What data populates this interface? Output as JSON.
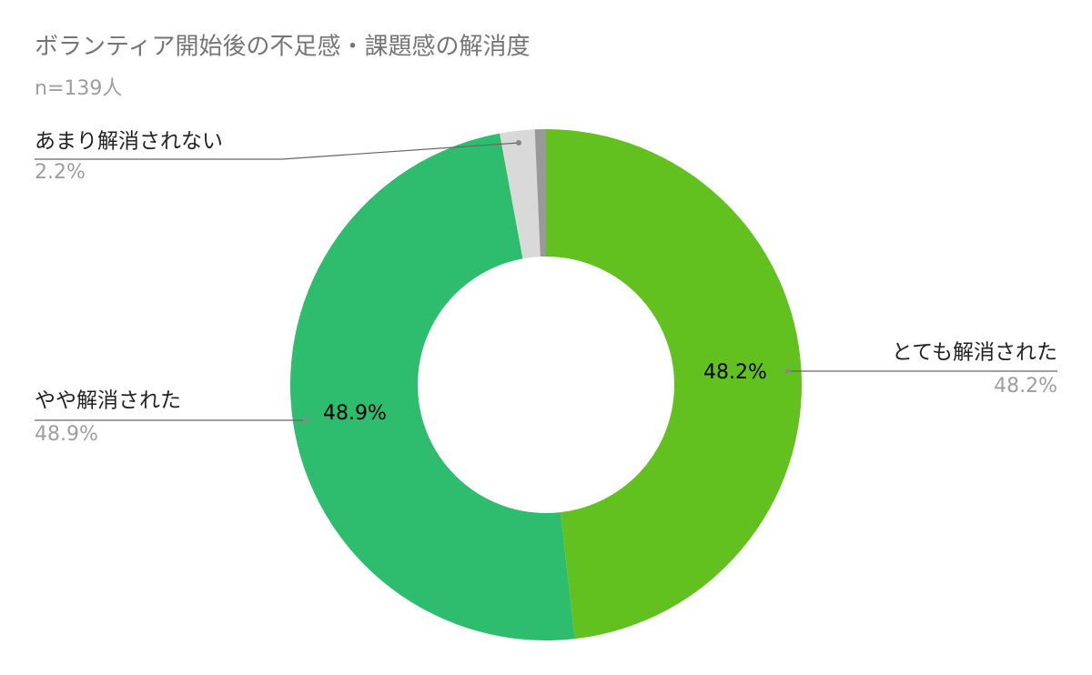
{
  "chart_data": {
    "type": "pie",
    "title": "ボランティア開始後の不足感・課題感の解消度",
    "subtitle": "n=139人",
    "categories": [
      "とても解消された",
      "やや解消された",
      "あまり解消されない",
      null
    ],
    "values": [
      48.2,
      48.9,
      2.2,
      0.7
    ],
    "value_labels": [
      "48.2%",
      "48.9%",
      "2.2%",
      null
    ],
    "colors": [
      "#62c11f",
      "#2ebd6f",
      "#d9d9d9",
      "#999999"
    ],
    "donut": true
  }
}
